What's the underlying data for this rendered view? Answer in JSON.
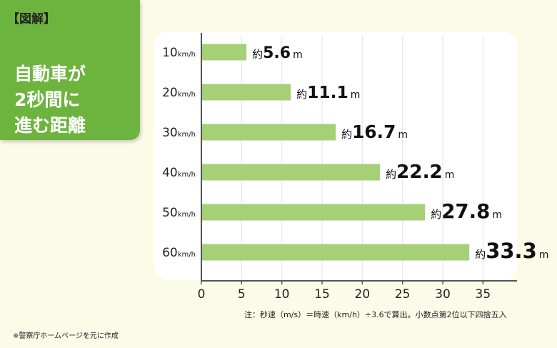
{
  "header": {
    "tag": "【図解】",
    "title_lines": [
      "自動車が",
      "2秒間に",
      "進む距離"
    ]
  },
  "chart_data": {
    "type": "bar",
    "orientation": "horizontal",
    "categories": [
      "10km/h",
      "20km/h",
      "30km/h",
      "40km/h",
      "50km/h",
      "60km/h"
    ],
    "category_values": [
      "10",
      "20",
      "30",
      "40",
      "50",
      "60"
    ],
    "category_unit": "km/h",
    "values": [
      5.6,
      11.1,
      16.7,
      22.2,
      27.8,
      33.3
    ],
    "value_prefix": "約",
    "value_unit": "m",
    "xlim": [
      0,
      38
    ],
    "xticks": [
      0,
      5,
      10,
      15,
      20,
      25,
      30,
      35
    ],
    "grid": true,
    "bar_color": "#a5d078"
  },
  "note": "注：秒速（m/s）＝時速（km/h）÷3.6で算出。小数点第2位以下四捨五入",
  "source": "※警察庁ホームページを元に作成"
}
